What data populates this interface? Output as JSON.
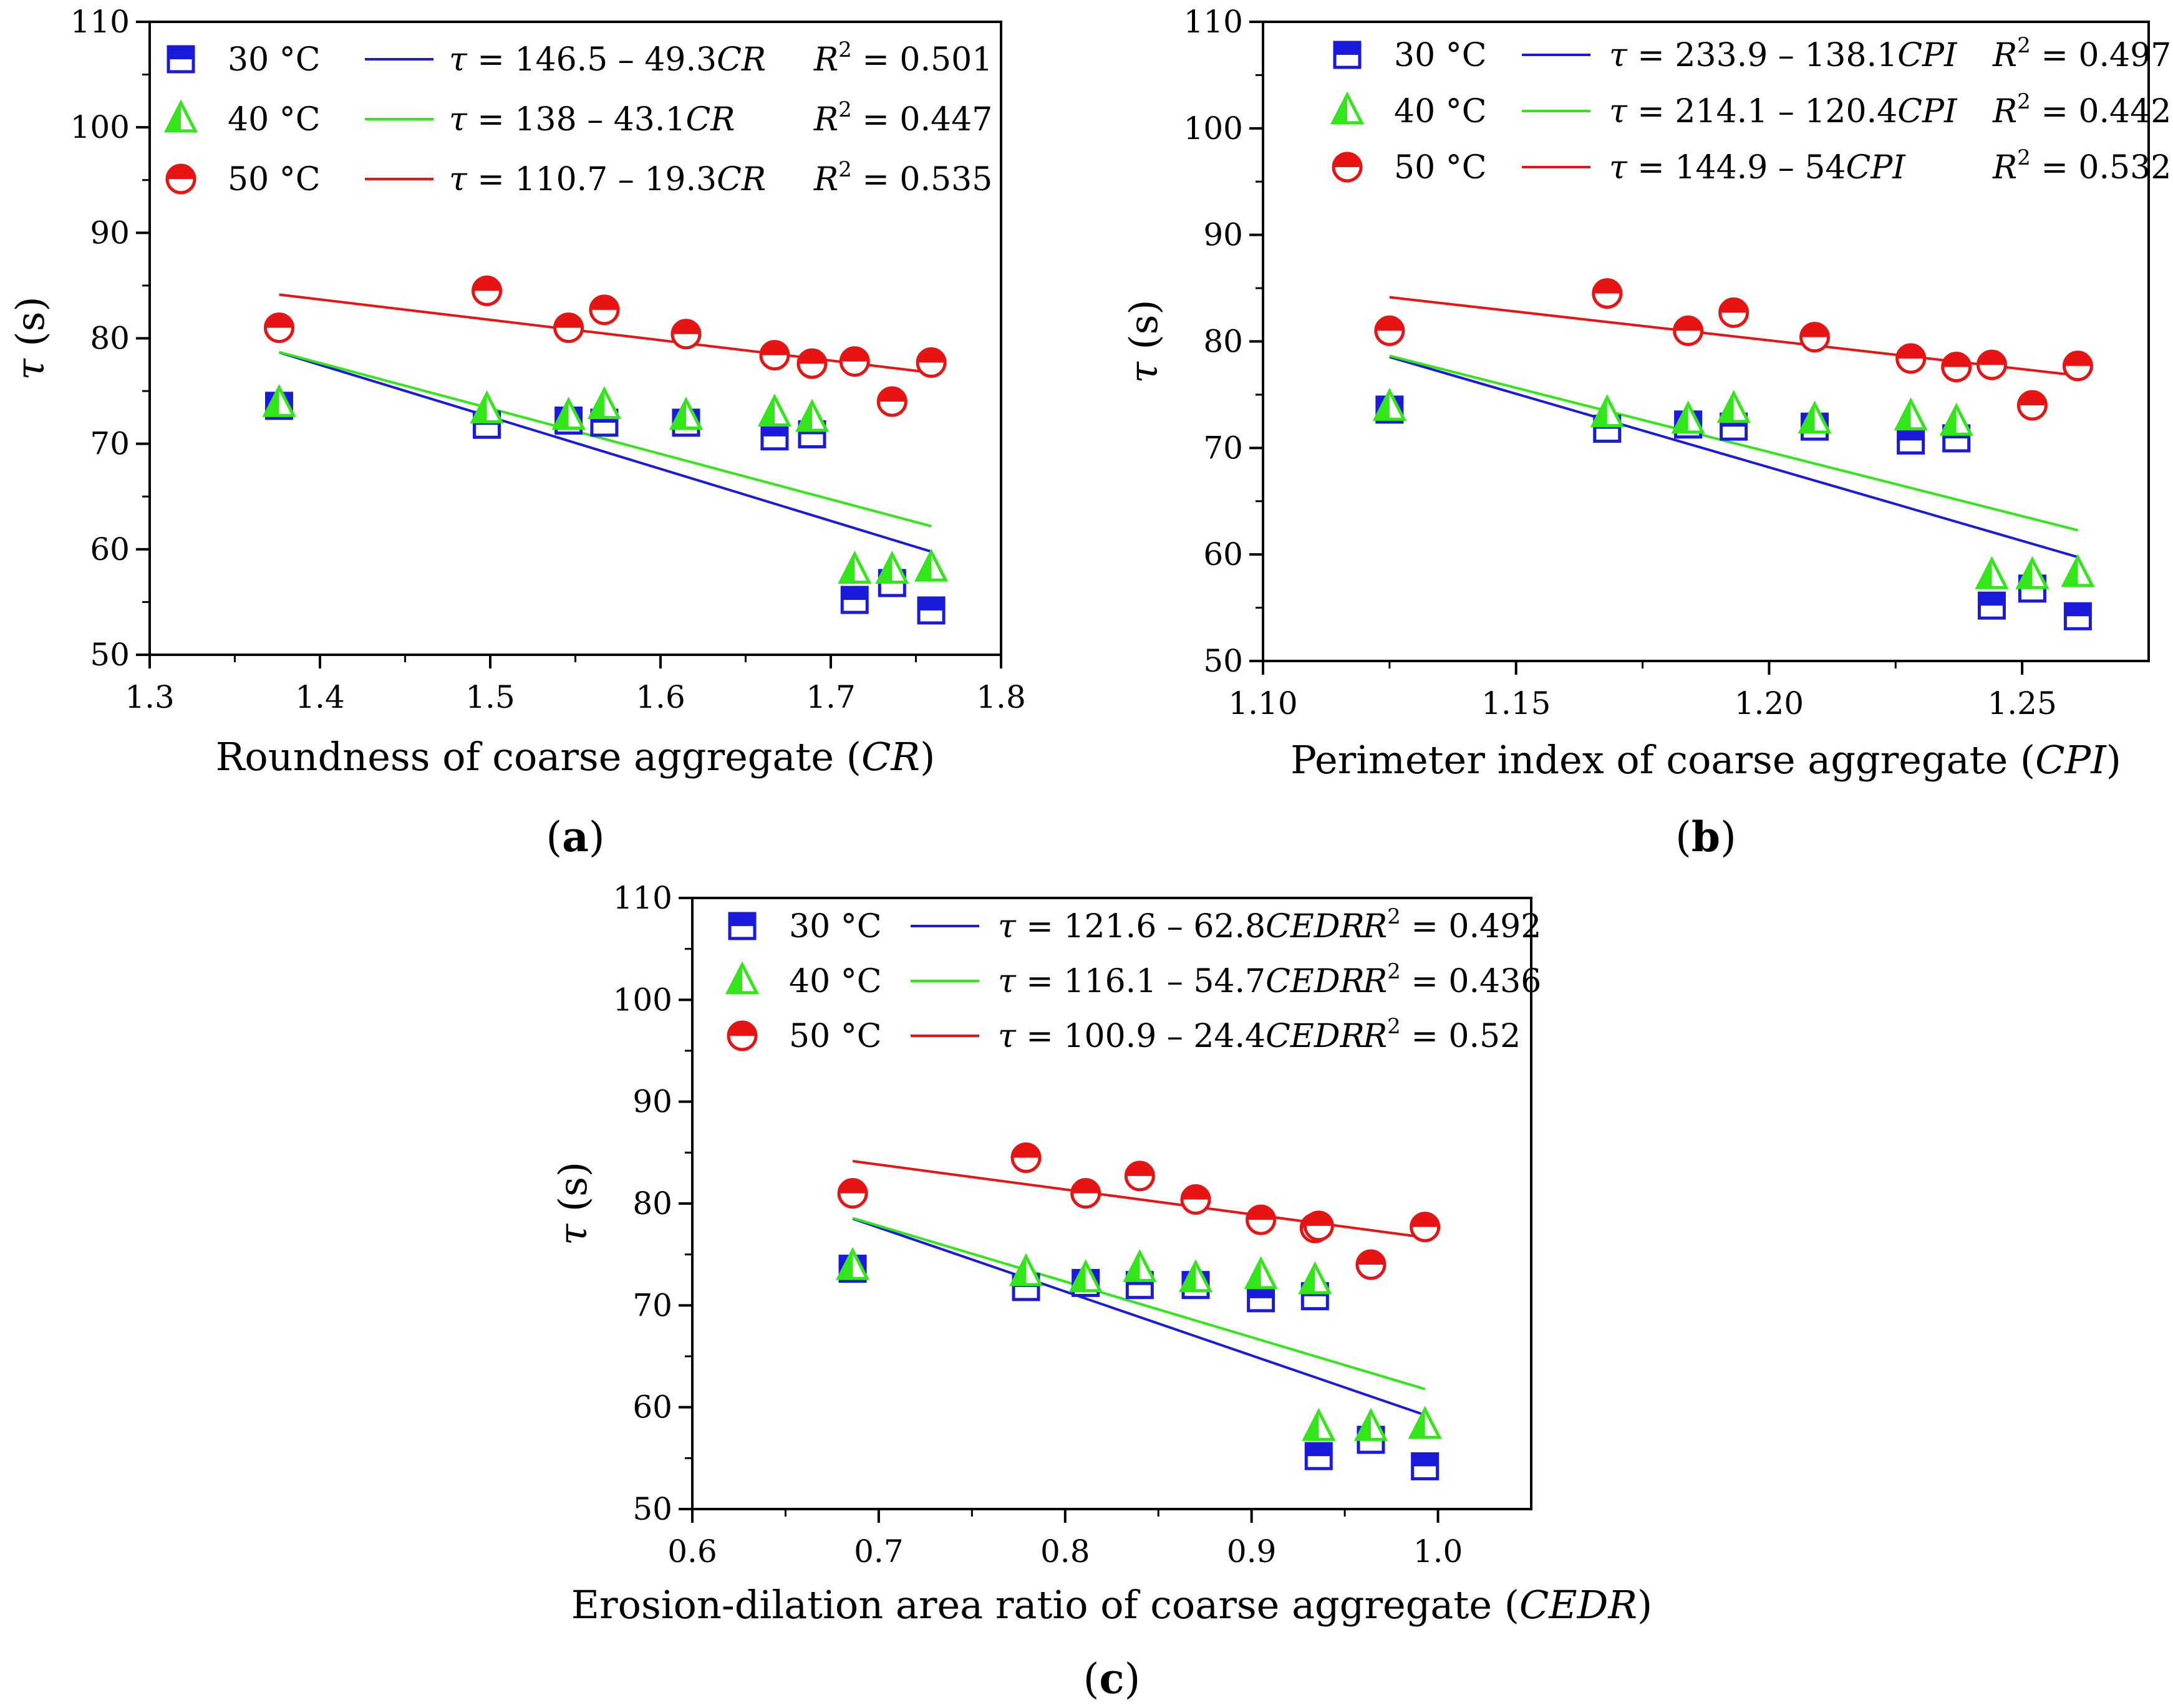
{
  "series_styles": {
    "30": {
      "color": "#1a1adb",
      "marker": "half-filled-square"
    },
    "40": {
      "color": "#33e61a",
      "marker": "half-filled-triangle"
    },
    "50": {
      "color": "#e81414",
      "marker": "half-filled-circle"
    }
  },
  "chart_data": [
    {
      "type": "scatter",
      "panel_label": "a",
      "xlabel": "Roundness of coarse aggregate (",
      "xlabel_var": "CR",
      "xlabel_end": ")",
      "ylabel": "τ",
      "ylabel_unit": "(s)",
      "xlim": [
        1.3,
        1.8
      ],
      "ylim": [
        50,
        110
      ],
      "xticks": [
        "1.3",
        "1.4",
        "1.5",
        "1.6",
        "1.7",
        "1.8"
      ],
      "yticks": [
        "50",
        "60",
        "70",
        "80",
        "90",
        "100",
        "110"
      ],
      "legend": [
        {
          "temp": "30",
          "label": "30 °C",
          "eq_lhs": "τ",
          "eq_rhs": " = 146.5 – 49.3",
          "eq_var": "CR",
          "r2_value": " = 0.501"
        },
        {
          "temp": "40",
          "label": "40 °C",
          "eq_lhs": "τ",
          "eq_rhs": " = 138 – 43.1",
          "eq_var": "CR",
          "r2_value": " = 0.447"
        },
        {
          "temp": "50",
          "label": "50 °C",
          "eq_lhs": "τ",
          "eq_rhs": " = 110.7 – 19.3",
          "eq_var": "CR",
          "r2_value": " = 0.535"
        }
      ],
      "x": [
        1.376,
        1.498,
        1.546,
        1.567,
        1.615,
        1.667,
        1.689,
        1.714,
        1.736,
        1.759
      ],
      "series": [
        {
          "name": "30 °C",
          "temp": "30",
          "values": [
            73.6,
            71.8,
            72.2,
            72.0,
            72.0,
            70.7,
            70.9,
            55.2,
            56.8,
            54.2
          ],
          "fit": {
            "intercept": 146.5,
            "slope": -49.3,
            "x_range": [
              1.376,
              1.759
            ]
          }
        },
        {
          "name": "40 °C",
          "temp": "40",
          "values": [
            73.8,
            73.2,
            72.6,
            73.6,
            72.6,
            72.9,
            72.4,
            58.0,
            58.0,
            58.2
          ],
          "fit": {
            "intercept": 138,
            "slope": -43.1,
            "x_range": [
              1.376,
              1.759
            ]
          }
        },
        {
          "name": "50 °C",
          "temp": "50",
          "values": [
            81.0,
            84.5,
            81.0,
            82.7,
            80.4,
            78.4,
            77.6,
            77.8,
            74.0,
            77.7
          ],
          "fit": {
            "intercept": 110.7,
            "slope": -19.3,
            "x_range": [
              1.376,
              1.759
            ]
          }
        }
      ]
    },
    {
      "type": "scatter",
      "panel_label": "b",
      "xlabel": "Perimeter index of coarse aggregate (",
      "xlabel_var": "CPI",
      "xlabel_end": ")",
      "ylabel": "τ",
      "ylabel_unit": "(s)",
      "xlim": [
        1.1,
        1.275
      ],
      "ylim": [
        50,
        110
      ],
      "xticks": [
        "1.10",
        "1.15",
        "1.20",
        "1.25"
      ],
      "xtick_values": [
        1.1,
        1.15,
        1.2,
        1.25
      ],
      "yticks": [
        "50",
        "60",
        "70",
        "80",
        "90",
        "100",
        "110"
      ],
      "legend": [
        {
          "temp": "30",
          "label": "30 °C",
          "eq_lhs": "τ",
          "eq_rhs": " = 233.9 – 138.1",
          "eq_var": "CPI",
          "r2_value": " = 0.497"
        },
        {
          "temp": "40",
          "label": "40 °C",
          "eq_lhs": "τ",
          "eq_rhs": " = 214.1 – 120.4",
          "eq_var": "CPI",
          "r2_value": " = 0.442"
        },
        {
          "temp": "50",
          "label": "50 °C",
          "eq_lhs": "τ",
          "eq_rhs": " = 144.9 – 54",
          "eq_var": "CPI",
          "r2_value": " = 0.532"
        }
      ],
      "x": [
        1.125,
        1.168,
        1.184,
        1.193,
        1.209,
        1.228,
        1.237,
        1.244,
        1.252,
        1.261
      ],
      "series": [
        {
          "name": "30 °C",
          "temp": "30",
          "values": [
            73.6,
            71.8,
            72.2,
            72.0,
            72.0,
            70.7,
            70.9,
            55.2,
            56.8,
            54.2
          ],
          "fit": {
            "intercept": 233.9,
            "slope": -138.1,
            "x_range": [
              1.125,
              1.261
            ]
          }
        },
        {
          "name": "40 °C",
          "temp": "40",
          "values": [
            73.8,
            73.2,
            72.6,
            73.6,
            72.6,
            72.9,
            72.4,
            58.0,
            58.0,
            58.2
          ],
          "fit": {
            "intercept": 214.1,
            "slope": -120.4,
            "x_range": [
              1.125,
              1.261
            ]
          }
        },
        {
          "name": "50 °C",
          "temp": "50",
          "values": [
            81.0,
            84.5,
            81.0,
            82.7,
            80.4,
            78.4,
            77.6,
            77.8,
            74.0,
            77.7
          ],
          "fit": {
            "intercept": 144.9,
            "slope": -54,
            "x_range": [
              1.125,
              1.261
            ]
          }
        }
      ]
    },
    {
      "type": "scatter",
      "panel_label": "c",
      "xlabel": "Erosion-dilation area ratio of coarse aggregate (",
      "xlabel_var": "CEDR",
      "xlabel_end": ")",
      "ylabel": "τ",
      "ylabel_unit": "(s)",
      "xlim": [
        0.6,
        1.05
      ],
      "ylim": [
        50,
        110
      ],
      "xticks": [
        "0.6",
        "0.7",
        "0.8",
        "0.9",
        "1.0"
      ],
      "xtick_values": [
        0.6,
        0.7,
        0.8,
        0.9,
        1.0
      ],
      "yticks": [
        "50",
        "60",
        "70",
        "80",
        "90",
        "100",
        "110"
      ],
      "legend": [
        {
          "temp": "30",
          "label": "30 °C",
          "eq_lhs": "τ",
          "eq_rhs": " = 121.6 – 62.8",
          "eq_var": "CEDR",
          "r2_value": " = 0.492"
        },
        {
          "temp": "40",
          "label": "40 °C",
          "eq_lhs": "τ",
          "eq_rhs": " = 116.1 – 54.7",
          "eq_var": "CEDR",
          "r2_value": " = 0.436"
        },
        {
          "temp": "50",
          "label": "50 °C",
          "eq_lhs": "τ",
          "eq_rhs": " = 100.9 – 24.4",
          "eq_var": "CEDR",
          "r2_value": " = 0.52"
        }
      ],
      "x": [
        0.686,
        0.779,
        0.811,
        0.84,
        0.87,
        0.905,
        0.934,
        0.936,
        0.964,
        0.993
      ],
      "series": [
        {
          "name": "30 °C",
          "temp": "30",
          "values": [
            73.6,
            71.8,
            72.2,
            72.0,
            72.0,
            70.7,
            70.9,
            55.2,
            56.8,
            54.2
          ],
          "fit": {
            "intercept": 121.6,
            "slope": -62.8,
            "x_range": [
              0.686,
              0.993
            ]
          }
        },
        {
          "name": "40 °C",
          "temp": "40",
          "values": [
            73.8,
            73.2,
            72.6,
            73.6,
            72.6,
            72.9,
            72.4,
            58.0,
            58.0,
            58.2
          ],
          "fit": {
            "intercept": 116.1,
            "slope": -54.7,
            "x_range": [
              0.686,
              0.993
            ]
          }
        },
        {
          "name": "50 °C",
          "temp": "50",
          "values": [
            81.0,
            84.5,
            81.0,
            82.7,
            80.4,
            78.4,
            77.6,
            77.8,
            74.0,
            77.7
          ],
          "fit": {
            "intercept": 100.9,
            "slope": -24.4,
            "x_range": [
              0.686,
              0.993
            ]
          }
        }
      ]
    }
  ]
}
